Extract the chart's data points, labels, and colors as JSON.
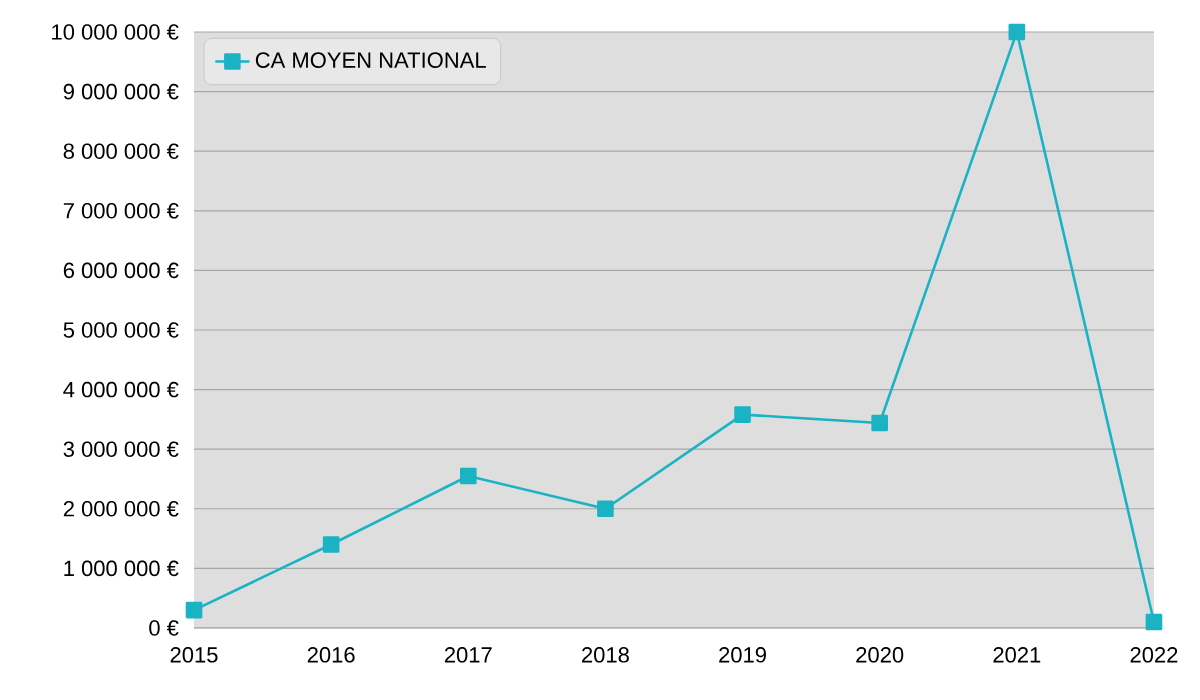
{
  "chart_data": {
    "type": "line",
    "categories": [
      "2015",
      "2016",
      "2017",
      "2018",
      "2019",
      "2020",
      "2021",
      "2022"
    ],
    "series": [
      {
        "name": "CA MOYEN NATIONAL",
        "color": "#1ab3c4",
        "values": [
          300000,
          1400000,
          2550000,
          2000000,
          3580000,
          3440000,
          10000000,
          100000
        ]
      }
    ],
    "ylim": [
      0,
      10000000
    ],
    "yticks": [
      {
        "value": 0,
        "label": "0 €"
      },
      {
        "value": 1000000,
        "label": "1 000 000 €"
      },
      {
        "value": 2000000,
        "label": "2 000 000 €"
      },
      {
        "value": 3000000,
        "label": "3 000 000 €"
      },
      {
        "value": 4000000,
        "label": "4 000 000 €"
      },
      {
        "value": 5000000,
        "label": "5 000 000 €"
      },
      {
        "value": 6000000,
        "label": "6 000 000 €"
      },
      {
        "value": 7000000,
        "label": "7 000 000 €"
      },
      {
        "value": 8000000,
        "label": "8 000 000 €"
      },
      {
        "value": 9000000,
        "label": "9 000 000 €"
      },
      {
        "value": 10000000,
        "label": "10 000 000 €"
      }
    ],
    "grid": "y",
    "legend": "top left",
    "marker": "square",
    "line_style": "solid"
  }
}
